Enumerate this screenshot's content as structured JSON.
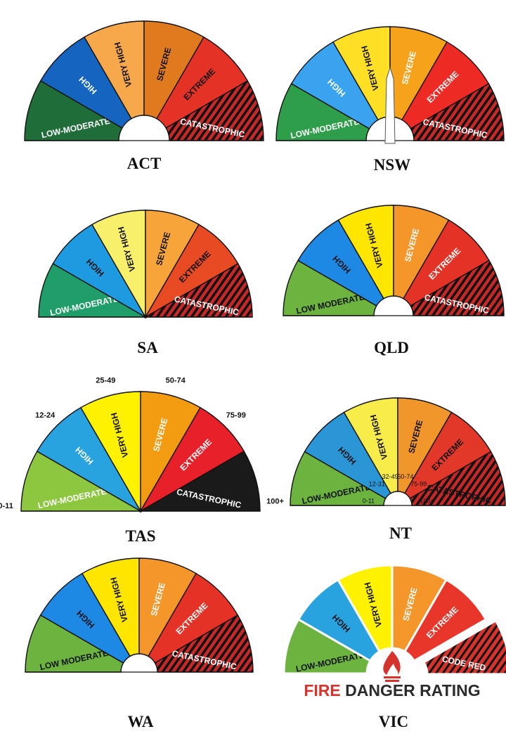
{
  "colors": {
    "green": "#2e7d32",
    "green_light": "#6cb33f",
    "blue": "#1e88e5",
    "yellow": "#f6e21a",
    "orange": "#f5a623",
    "red": "#e53227",
    "dark_red": "#b71c1c",
    "black": "#1a1a1a",
    "vic_red": "#d7332d"
  },
  "charts": [
    {
      "id": "act",
      "state": "ACT",
      "hub": true,
      "needle": false,
      "bands": [
        {
          "label": "LOW-MODERATE",
          "color": "#1f6e3a",
          "text": "#ffffff",
          "hatch": false
        },
        {
          "label": "HIGH",
          "color": "#1565c0",
          "text": "#ffffff",
          "hatch": false
        },
        {
          "label": "VERY HIGH",
          "color": "#f6a84a",
          "text": "#111111",
          "hatch": false
        },
        {
          "label": "SEVERE",
          "color": "#e07a1f",
          "text": "#111111",
          "hatch": false
        },
        {
          "label": "EXTREME",
          "color": "#e53227",
          "text": "#111111",
          "hatch": false
        },
        {
          "label": "CATASTROPHIC",
          "color": "#c62828",
          "text": "#ffffff",
          "hatch": true
        }
      ]
    },
    {
      "id": "nsw",
      "state": "NSW",
      "hub": true,
      "needle": true,
      "bands": [
        {
          "label": "LOW-MODERATE",
          "color": "#2e9e4a",
          "text": "#ffffff",
          "hatch": false
        },
        {
          "label": "HIGH",
          "color": "#3aa3f0",
          "text": "#ffffff",
          "hatch": false
        },
        {
          "label": "VERY HIGH",
          "color": "#ffe024",
          "text": "#111111",
          "hatch": false
        },
        {
          "label": "SEVERE",
          "color": "#f7a21b",
          "text": "#ffffff",
          "hatch": false
        },
        {
          "label": "EXTREME",
          "color": "#ee2a24",
          "text": "#ffffff",
          "hatch": false
        },
        {
          "label": "CATASTROPHIC",
          "color": "#c62828",
          "text": "#ffffff",
          "hatch": true
        }
      ]
    },
    {
      "id": "sa",
      "state": "SA",
      "hub": false,
      "needle": false,
      "bands": [
        {
          "label": "LOW-MODERATE",
          "color": "#1f9e6a",
          "text": "#ffffff",
          "hatch": false
        },
        {
          "label": "HIGH",
          "color": "#1e9be0",
          "text": "#111111",
          "hatch": false
        },
        {
          "label": "VERY HIGH",
          "color": "#f8ef6a",
          "text": "#111111",
          "hatch": false
        },
        {
          "label": "SEVERE",
          "color": "#f7a53a",
          "text": "#111111",
          "hatch": false
        },
        {
          "label": "EXTREME",
          "color": "#e84a24",
          "text": "#111111",
          "hatch": false
        },
        {
          "label": "CATASTROPHIC",
          "color": "#c62828",
          "text": "#ffffff",
          "hatch": true
        }
      ]
    },
    {
      "id": "qld",
      "state": "QLD",
      "hub": true,
      "needle": false,
      "bands": [
        {
          "label": "LOW MODERATE",
          "color": "#6cb33f",
          "text": "#111111",
          "hatch": false
        },
        {
          "label": "HIGH",
          "color": "#1e88e5",
          "text": "#111111",
          "hatch": false
        },
        {
          "label": "VERY HIGH",
          "color": "#ffe600",
          "text": "#111111",
          "hatch": false
        },
        {
          "label": "SEVERE",
          "color": "#f5962a",
          "text": "#ffffff",
          "hatch": false
        },
        {
          "label": "EXTREME",
          "color": "#e53227",
          "text": "#ffffff",
          "hatch": false
        },
        {
          "label": "CATASTROPHIC",
          "color": "#c62828",
          "text": "#ffffff",
          "hatch": true
        }
      ]
    },
    {
      "id": "tas",
      "state": "TAS",
      "hub": false,
      "needle": false,
      "bands": [
        {
          "label": "LOW-MODERATE",
          "color": "#8dc63f",
          "text": "#ffffff",
          "hatch": false,
          "range": "0-11"
        },
        {
          "label": "HIGH",
          "color": "#29a3e0",
          "text": "#ffffff",
          "hatch": false,
          "range": "12-24"
        },
        {
          "label": "VERY HIGH",
          "color": "#fff200",
          "text": "#111111",
          "hatch": false,
          "range": "25-49"
        },
        {
          "label": "SEVERE",
          "color": "#f39c12",
          "text": "#ffffff",
          "hatch": false,
          "range": "50-74"
        },
        {
          "label": "EXTREME",
          "color": "#e8202a",
          "text": "#ffffff",
          "hatch": false,
          "range": "75-99"
        },
        {
          "label": "CATASTROPHIC",
          "color": "#1a1a1a",
          "text": "#ffffff",
          "hatch": false,
          "range": "100+"
        }
      ]
    },
    {
      "id": "nt",
      "state": "NT",
      "hub": true,
      "needle": false,
      "bands": [
        {
          "label": "LOW-MODERATE",
          "color": "#6cb33f",
          "text": "#111111",
          "hatch": false,
          "range": "0-11"
        },
        {
          "label": "HIGH",
          "color": "#2b96d6",
          "text": "#111111",
          "hatch": false,
          "range": "12-31"
        },
        {
          "label": "VERY HIGH",
          "color": "#f8ec4a",
          "text": "#111111",
          "hatch": false,
          "range": "32-49"
        },
        {
          "label": "SEVERE",
          "color": "#f0962a",
          "text": "#111111",
          "hatch": false,
          "range": "50-74"
        },
        {
          "label": "EXTREME",
          "color": "#e2382a",
          "text": "#111111",
          "hatch": false,
          "range": "75-99"
        },
        {
          "label": "CATASTROPHIC",
          "color": "#c62828",
          "text": "#111111",
          "hatch": true,
          "range": "100+"
        }
      ]
    },
    {
      "id": "wa",
      "state": "WA",
      "hub": true,
      "needle": false,
      "bands": [
        {
          "label": "LOW MODERATE",
          "color": "#6cb33f",
          "text": "#111111",
          "hatch": false
        },
        {
          "label": "HIGH",
          "color": "#1e88e5",
          "text": "#111111",
          "hatch": false
        },
        {
          "label": "VERY HIGH",
          "color": "#ffe600",
          "text": "#111111",
          "hatch": false
        },
        {
          "label": "SEVERE",
          "color": "#f5962a",
          "text": "#ffffff",
          "hatch": false
        },
        {
          "label": "EXTREME",
          "color": "#e53227",
          "text": "#ffffff",
          "hatch": false
        },
        {
          "label": "CATASTROPHIC",
          "color": "#c62828",
          "text": "#ffffff",
          "hatch": true
        }
      ]
    },
    {
      "id": "vic",
      "state": "VIC",
      "hub": true,
      "needle": false,
      "bands": [
        {
          "label": "LOW-MODERATE",
          "color": "#6cb33f",
          "text": "#111111",
          "hatch": false
        },
        {
          "label": "HIGH",
          "color": "#29a3e0",
          "text": "#111111",
          "hatch": false
        },
        {
          "label": "VERY HIGH",
          "color": "#fff200",
          "text": "#111111",
          "hatch": false
        },
        {
          "label": "SEVERE",
          "color": "#f5962a",
          "text": "#ffffff",
          "hatch": false
        },
        {
          "label": "EXTREME",
          "color": "#e8362a",
          "text": "#ffffff",
          "hatch": false
        },
        {
          "label": "CODE RED",
          "color": "#d7332d",
          "text": "#ffffff",
          "hatch": true
        }
      ],
      "title_red": "FIRE",
      "title_dark": " DANGER RATING"
    }
  ]
}
